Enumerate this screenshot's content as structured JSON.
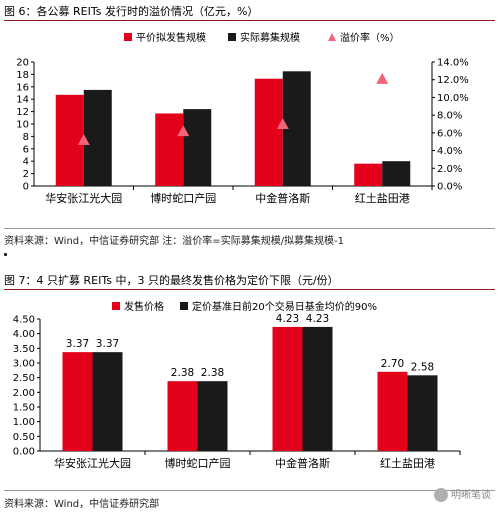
{
  "figure1": {
    "title": "图 6：各公募 REITs 发行时的溢价情况（亿元，%）",
    "source": "资料来源：Wind，中信证券研究部 注：溢价率=实际募集规模/拟募集规模-1"
  },
  "figure2": {
    "title": "图 7：4 只扩募 REITs 中，3 只的最终发售价格为定价下限（元/份）",
    "source": "资料来源：Wind，中信证券研究部"
  },
  "watermark": "明晰笔谈",
  "colors": {
    "red": "#e2001a",
    "black": "#1a1a1a",
    "pink": "#f06478"
  },
  "chart_data": [
    {
      "type": "bar",
      "categories": [
        "华安张江光大园",
        "博时蛇口产园",
        "中金普洛斯",
        "红土盐田港"
      ],
      "series": [
        {
          "name": "平价拟发售规模",
          "values": [
            14.7,
            11.7,
            17.3,
            3.6
          ],
          "axis": "left"
        },
        {
          "name": "实际募集规模",
          "values": [
            15.5,
            12.4,
            18.5,
            4.0
          ],
          "axis": "left"
        },
        {
          "name": "溢价率（%）",
          "type": "scatter",
          "values": [
            5.2,
            6.2,
            7.0,
            12.1
          ],
          "axis": "right"
        }
      ],
      "ylim": [
        0,
        20
      ],
      "yticks": [
        "0",
        "2",
        "4",
        "6",
        "8",
        "10",
        "12",
        "14",
        "16",
        "18",
        "20"
      ],
      "y2lim": [
        0,
        14
      ],
      "y2ticks": [
        "0.0%",
        "2.0%",
        "4.0%",
        "6.0%",
        "8.0%",
        "10.0%",
        "12.0%",
        "14.0%"
      ],
      "legend": "top"
    },
    {
      "type": "bar",
      "categories": [
        "华安张江光大园",
        "博时蛇口产园",
        "中金普洛斯",
        "红土盐田港"
      ],
      "series": [
        {
          "name": "发售价格",
          "values": [
            3.37,
            2.38,
            4.23,
            2.7
          ],
          "labels": [
            "3.37",
            "2.38",
            "4.23",
            "2.70"
          ]
        },
        {
          "name": "定价基准日前20个交易日基金均价的90%",
          "values": [
            3.37,
            2.38,
            4.23,
            2.58
          ],
          "labels": [
            "3.37",
            "2.38",
            "4.23",
            "2.58"
          ]
        }
      ],
      "ylim": [
        0,
        4.5
      ],
      "yticks": [
        "0.00",
        "0.50",
        "1.00",
        "1.50",
        "2.00",
        "2.50",
        "3.00",
        "3.50",
        "4.00",
        "4.50"
      ],
      "legend": "top"
    }
  ]
}
